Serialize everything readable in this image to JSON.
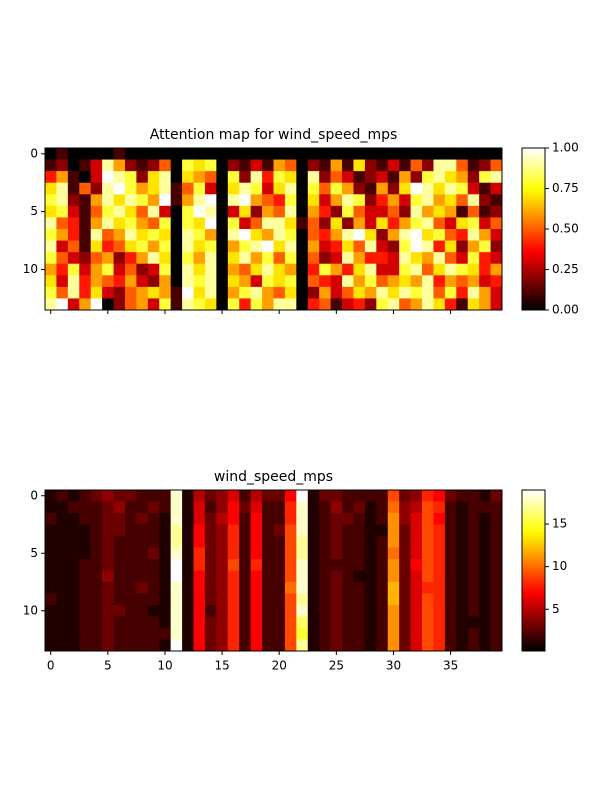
{
  "chart_data": [
    {
      "type": "heatmap",
      "title": "Attention map for wind_speed_mps",
      "colormap": "hot",
      "xlim": [
        -0.5,
        39.5
      ],
      "ylim": [
        13.5,
        -0.5
      ],
      "xticks": [
        0,
        5,
        10,
        15,
        20,
        25,
        30,
        35
      ],
      "xtick_labels": false,
      "yticks": [
        0,
        5,
        10
      ],
      "zlim": [
        0,
        1
      ],
      "colorbar_ticks": [
        {
          "value": 0,
          "label": "0.00"
        },
        {
          "value": 0.25,
          "label": "0.25"
        },
        {
          "value": 0.5,
          "label": "0.50"
        },
        {
          "value": 0.75,
          "label": "0.75"
        },
        {
          "value": 1,
          "label": "1.00"
        }
      ],
      "z": [
        [
          0,
          0.1,
          0,
          0,
          0,
          0,
          0.1,
          0,
          0,
          0,
          0,
          0,
          0,
          0,
          0,
          0,
          0,
          0,
          0,
          0,
          0,
          0,
          0,
          0,
          0,
          0,
          0,
          0,
          0,
          0,
          0,
          0,
          0,
          0,
          0,
          0,
          0,
          0,
          0,
          0
        ],
        [
          0.1,
          0.2,
          0,
          0.1,
          0.3,
          0.9,
          0.6,
          0.2,
          0.1,
          0.2,
          0.5,
          0,
          0.8,
          0.7,
          0.8,
          0,
          0.2,
          0.1,
          0.3,
          0.1,
          0.6,
          0.5,
          0,
          0.2,
          0.1,
          0.6,
          0.1,
          0.7,
          0.2,
          0.1,
          0.3,
          0.1,
          0.5,
          0.2,
          0.9,
          0.9,
          0.5,
          0.1,
          0.2,
          0.5
        ],
        [
          0.4,
          0.6,
          0.1,
          0,
          0.3,
          1,
          0.9,
          0.8,
          0.2,
          0.7,
          0.9,
          0,
          0.7,
          0.6,
          0.5,
          0,
          0.8,
          0.2,
          0.9,
          0.4,
          0.8,
          0.7,
          0,
          0.9,
          0.2,
          0.5,
          0.3,
          0.1,
          0.2,
          0.3,
          0.1,
          0.6,
          0.2,
          0.8,
          0.9,
          0.7,
          0.6,
          0.2,
          0.8,
          0.9
        ],
        [
          0.7,
          0.9,
          0.1,
          0.5,
          0.2,
          0.9,
          1,
          0.8,
          0.6,
          0.7,
          0.9,
          0.1,
          0.5,
          0.8,
          0.3,
          0,
          0.7,
          0.9,
          0.8,
          0.3,
          0.7,
          0.9,
          0,
          0.8,
          0.5,
          0.8,
          0.6,
          0.2,
          0.1,
          0.6,
          0.2,
          0.7,
          1,
          0.9,
          0.7,
          0.9,
          0.8,
          0.3,
          0.1,
          0.3
        ],
        [
          0.8,
          0.9,
          0.2,
          0.1,
          0.6,
          0.9,
          0.7,
          0.9,
          0.8,
          0.6,
          1,
          0.1,
          0.6,
          0.9,
          1,
          0,
          0.9,
          1,
          0.6,
          0.5,
          0.4,
          0.8,
          0,
          0.7,
          0.3,
          0.6,
          0.9,
          0.8,
          0.2,
          0.4,
          0.6,
          0.3,
          0.8,
          0.9,
          0.6,
          0.7,
          0.5,
          0.9,
          0.2,
          0.1
        ],
        [
          0.7,
          0.8,
          0.3,
          0.1,
          0.5,
          0.8,
          0.9,
          0.7,
          0.5,
          0.9,
          0.3,
          0,
          0.8,
          1,
          0.9,
          0,
          0.3,
          0.7,
          0.2,
          0.6,
          0.5,
          0.9,
          0,
          0.6,
          0.4,
          0.2,
          0.8,
          0.5,
          0.3,
          0.3,
          0.5,
          0.2,
          0.9,
          0.6,
          0.7,
          0.6,
          0.1,
          0.5,
          0.1,
          0.2
        ],
        [
          0.9,
          0.5,
          0.4,
          0.1,
          0.6,
          0.9,
          0.7,
          0.8,
          0.6,
          0.5,
          0.8,
          0,
          0.8,
          0.7,
          1,
          0,
          0.8,
          0.3,
          0.5,
          0.9,
          0.9,
          0.7,
          0.1,
          0.5,
          0.2,
          0.7,
          0.2,
          0.6,
          0.3,
          0.7,
          0.4,
          0.6,
          0.8,
          0.9,
          0.5,
          0.3,
          0.7,
          0.8,
          0.3,
          0.5
        ],
        [
          0.8,
          0.6,
          0.4,
          0.1,
          0.9,
          0.5,
          0.6,
          0.9,
          0.7,
          0.8,
          0.7,
          0,
          0.9,
          0.8,
          0.6,
          0,
          0.9,
          1,
          0.7,
          0.6,
          0.9,
          0.8,
          0,
          0.5,
          0.4,
          0.6,
          0.9,
          1,
          0.7,
          0.2,
          0.6,
          0.9,
          1,
          0.7,
          0.8,
          0.5,
          0.4,
          0.9,
          0.6,
          0.3
        ],
        [
          0.9,
          0.3,
          0.5,
          0.1,
          0.7,
          0.4,
          0.5,
          0.7,
          0.8,
          0.6,
          0.8,
          0,
          0.9,
          0.7,
          0.8,
          0,
          0.6,
          0.8,
          0.9,
          1,
          0.7,
          0.9,
          0,
          0.6,
          0.3,
          0.4,
          0.7,
          0.5,
          0.9,
          0.3,
          0.2,
          0.8,
          1,
          0.9,
          0.4,
          0.7,
          0.2,
          0.6,
          0.8,
          0.2
        ],
        [
          0.8,
          0.5,
          0.3,
          0.2,
          0.5,
          0.6,
          0.2,
          0.4,
          0.6,
          0.9,
          0.7,
          0,
          0.8,
          0.6,
          0.9,
          0,
          0.7,
          0.9,
          0.6,
          0.8,
          0.5,
          0.8,
          0,
          0.5,
          0.2,
          0.3,
          0.9,
          0.6,
          0.4,
          0.4,
          0.3,
          0.9,
          0.7,
          0.6,
          0.9,
          0.5,
          0.3,
          0.8,
          0.4,
          0.3
        ],
        [
          0.6,
          0.4,
          0.8,
          0.3,
          0.6,
          0.8,
          0.3,
          0.5,
          0.2,
          0.3,
          0.8,
          0,
          0.9,
          0.7,
          0.9,
          0,
          0.6,
          0.5,
          0.7,
          0.9,
          0.7,
          0.6,
          0,
          0.4,
          0.8,
          0.6,
          0.4,
          0.7,
          0.9,
          0.3,
          0.3,
          0.8,
          0.9,
          0.5,
          0.7,
          0.9,
          0.8,
          0.7,
          0.4,
          0.6
        ],
        [
          0.7,
          0.3,
          0.9,
          0.4,
          0.6,
          0.5,
          0.4,
          0.6,
          0.3,
          0.2,
          0.6,
          0,
          0.9,
          0.8,
          0.9,
          0,
          0.7,
          0.6,
          0.3,
          0.8,
          0.7,
          0.8,
          0,
          0.5,
          0.4,
          0.3,
          0.9,
          0.6,
          0.8,
          0.5,
          0.6,
          0.7,
          0.6,
          0.9,
          0.4,
          0.6,
          0.5,
          0.6,
          0.3,
          0.4
        ],
        [
          0.8,
          0.5,
          0.9,
          0.4,
          0.7,
          0.3,
          0.2,
          0.5,
          0.6,
          0.7,
          0.6,
          0.1,
          1,
          0.7,
          0.9,
          0,
          0.6,
          0.8,
          0.9,
          0.6,
          0.5,
          0.7,
          0,
          0.2,
          0.6,
          0.3,
          0.5,
          0.7,
          0.6,
          0.9,
          0.7,
          0.9,
          0.8,
          0.9,
          0.5,
          0.8,
          0.4,
          0.9,
          0.6,
          0.3
        ],
        [
          0.9,
          1,
          0.3,
          0.6,
          1,
          0,
          0.2,
          0.5,
          0.6,
          0.3,
          0.8,
          0.1,
          0.9,
          0.8,
          0.7,
          0,
          0.8,
          0.4,
          0.8,
          0.6,
          0.9,
          0.9,
          0,
          0.4,
          0.5,
          0.1,
          0.3,
          0.4,
          0.2,
          0.8,
          0.9,
          0.5,
          0.6,
          0.9,
          0.7,
          0.4,
          0.1,
          0.7,
          0.6,
          0.3
        ]
      ]
    },
    {
      "type": "heatmap",
      "title": "wind_speed_mps",
      "colormap": "hot",
      "xlim": [
        -0.5,
        39.5
      ],
      "ylim": [
        13.5,
        -0.5
      ],
      "xticks": [
        0,
        5,
        10,
        15,
        20,
        25,
        30,
        35
      ],
      "xtick_labels": true,
      "yticks": [
        0,
        5,
        10
      ],
      "zlim": [
        0.1,
        19
      ],
      "colorbar_ticks": [
        5,
        10,
        15
      ],
      "z": [
        [
          1,
          2,
          1,
          2,
          3,
          4,
          3,
          3,
          2,
          2,
          2,
          18,
          1,
          5,
          3,
          4,
          6,
          2,
          5,
          3,
          3,
          7,
          19,
          1,
          3,
          3,
          2,
          2,
          2,
          2,
          9,
          3,
          4,
          8,
          7,
          3,
          2,
          2,
          1,
          3
        ],
        [
          1,
          1,
          2,
          2,
          2,
          3,
          4,
          2,
          2,
          3,
          2,
          18,
          1,
          6,
          2,
          4,
          7,
          3,
          6,
          2,
          2,
          8,
          18,
          1,
          2,
          4,
          2,
          3,
          1,
          2,
          10,
          4,
          5,
          9,
          8,
          2,
          1,
          2,
          2,
          2
        ],
        [
          2,
          1,
          1,
          2,
          2,
          3,
          3,
          2,
          3,
          2,
          1,
          18,
          1,
          6,
          3,
          5,
          7,
          2,
          7,
          2,
          2,
          8,
          18,
          1,
          2,
          3,
          3,
          2,
          1,
          2,
          11,
          4,
          6,
          9,
          7,
          2,
          1,
          2,
          1,
          2
        ],
        [
          1,
          1,
          1,
          1,
          2,
          3,
          3,
          2,
          2,
          2,
          1,
          17,
          1,
          7,
          3,
          4,
          8,
          2,
          7,
          2,
          3,
          9,
          18,
          1,
          2,
          3,
          2,
          2,
          1,
          1,
          11,
          3,
          6,
          9,
          8,
          2,
          1,
          2,
          1,
          2
        ],
        [
          1,
          1,
          1,
          1,
          2,
          3,
          2,
          2,
          2,
          2,
          1,
          17,
          1,
          7,
          3,
          4,
          8,
          2,
          7,
          2,
          2,
          9,
          17,
          1,
          2,
          3,
          2,
          2,
          1,
          2,
          11,
          3,
          6,
          9,
          8,
          2,
          1,
          2,
          1,
          2
        ],
        [
          1,
          1,
          1,
          1,
          2,
          3,
          2,
          2,
          2,
          3,
          1,
          18,
          1,
          8,
          3,
          4,
          8,
          2,
          7,
          2,
          2,
          9,
          17,
          1,
          2,
          3,
          2,
          2,
          1,
          2,
          10,
          3,
          6,
          9,
          8,
          2,
          1,
          2,
          1,
          2
        ],
        [
          1,
          1,
          1,
          2,
          2,
          3,
          2,
          2,
          2,
          2,
          1,
          19,
          1,
          8,
          3,
          4,
          9,
          2,
          8,
          2,
          2,
          9,
          18,
          1,
          2,
          2,
          2,
          2,
          1,
          2,
          11,
          3,
          7,
          9,
          8,
          2,
          1,
          2,
          1,
          2
        ],
        [
          1,
          1,
          1,
          2,
          2,
          4,
          2,
          2,
          2,
          2,
          1,
          19,
          1,
          7,
          3,
          4,
          8,
          2,
          7,
          2,
          2,
          9,
          18,
          1,
          2,
          3,
          2,
          1,
          1,
          2,
          11,
          3,
          6,
          9,
          8,
          2,
          1,
          2,
          1,
          2
        ],
        [
          1,
          1,
          1,
          2,
          2,
          3,
          2,
          2,
          3,
          2,
          1,
          18,
          1,
          7,
          3,
          4,
          8,
          2,
          7,
          2,
          2,
          10,
          18,
          1,
          2,
          3,
          2,
          2,
          1,
          2,
          12,
          3,
          6,
          8,
          8,
          2,
          1,
          2,
          1,
          2
        ],
        [
          2,
          1,
          1,
          2,
          2,
          3,
          2,
          2,
          2,
          2,
          1,
          18,
          1,
          7,
          3,
          4,
          8,
          2,
          7,
          2,
          2,
          9,
          17,
          1,
          2,
          3,
          2,
          2,
          1,
          2,
          12,
          3,
          6,
          9,
          8,
          2,
          1,
          2,
          1,
          2
        ],
        [
          1,
          1,
          1,
          2,
          2,
          3,
          3,
          2,
          2,
          1,
          1,
          18,
          1,
          7,
          2,
          4,
          8,
          2,
          7,
          2,
          2,
          9,
          18,
          1,
          2,
          3,
          2,
          2,
          1,
          2,
          11,
          3,
          6,
          9,
          8,
          2,
          1,
          2,
          1,
          2
        ],
        [
          1,
          1,
          1,
          2,
          2,
          3,
          2,
          2,
          2,
          2,
          1,
          18,
          1,
          7,
          3,
          4,
          8,
          2,
          7,
          2,
          2,
          9,
          16,
          1,
          2,
          3,
          2,
          2,
          1,
          2,
          11,
          3,
          6,
          9,
          8,
          2,
          1,
          1,
          1,
          2
        ],
        [
          1,
          1,
          1,
          2,
          2,
          3,
          2,
          2,
          2,
          2,
          2,
          18,
          1,
          7,
          3,
          4,
          8,
          2,
          7,
          2,
          2,
          9,
          15,
          1,
          2,
          3,
          2,
          2,
          1,
          2,
          11,
          3,
          6,
          9,
          8,
          2,
          1,
          2,
          1,
          2
        ],
        [
          1,
          1,
          1,
          2,
          2,
          3,
          2,
          2,
          2,
          2,
          1,
          19,
          1,
          7,
          3,
          4,
          8,
          2,
          7,
          2,
          2,
          9,
          17,
          1,
          2,
          3,
          2,
          2,
          1,
          2,
          11,
          3,
          6,
          9,
          8,
          2,
          1,
          2,
          1,
          2
        ]
      ]
    }
  ]
}
